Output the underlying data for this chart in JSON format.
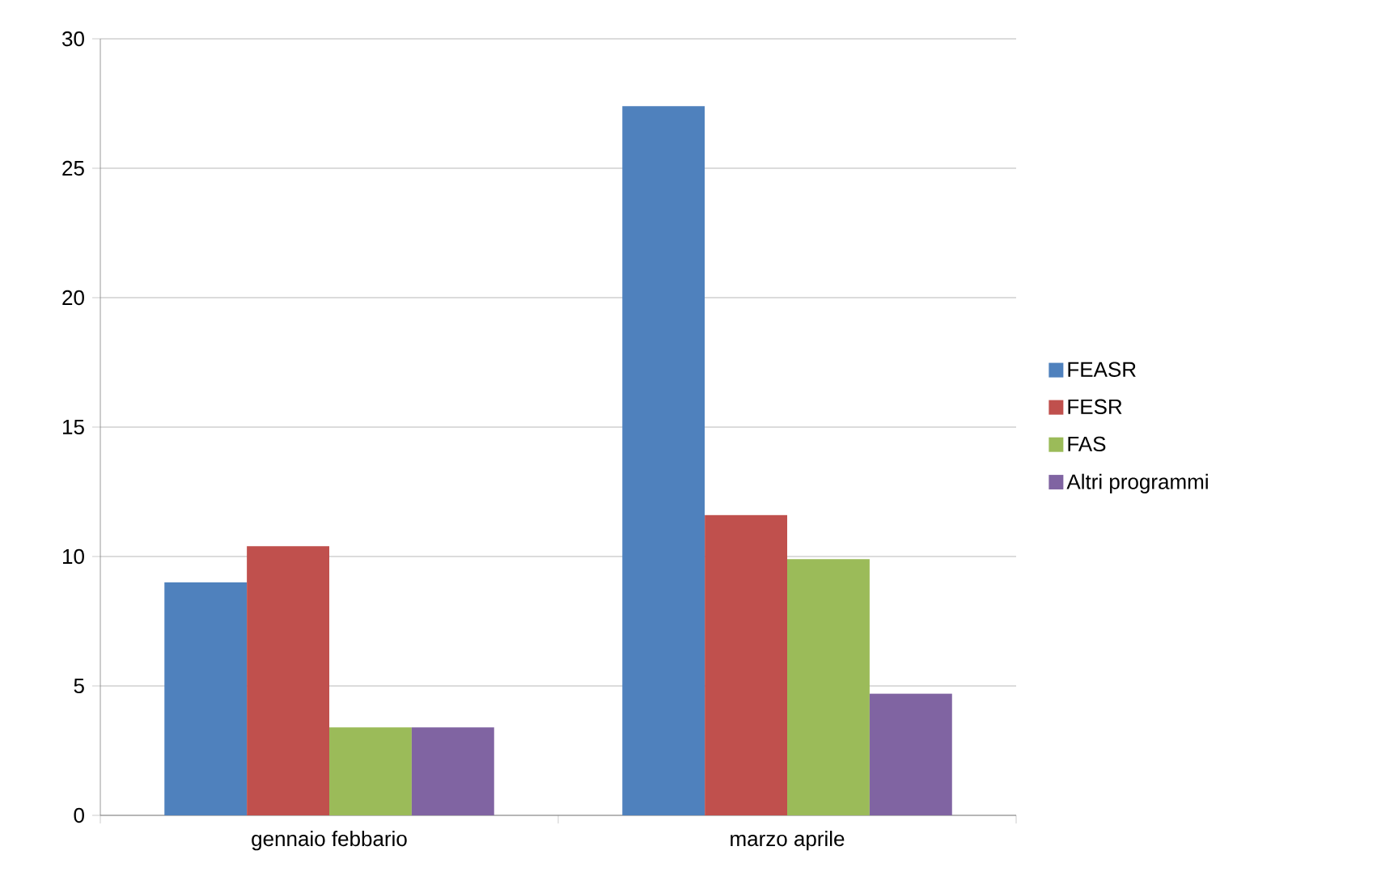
{
  "chart_data": {
    "type": "bar",
    "categories": [
      "gennaio febbario",
      "marzo aprile"
    ],
    "series": [
      {
        "name": "FEASR",
        "color": "#4f81bd",
        "values": [
          9.0,
          27.4
        ]
      },
      {
        "name": "FESR",
        "color": "#c0504d",
        "values": [
          10.4,
          11.6
        ]
      },
      {
        "name": "FAS",
        "color": "#9bbb59",
        "values": [
          3.4,
          9.9
        ]
      },
      {
        "name": "Altri programmi",
        "color": "#8064a2",
        "values": [
          3.4,
          4.7
        ]
      }
    ],
    "ylim": [
      0,
      30
    ],
    "yticks": [
      0,
      5,
      10,
      15,
      20,
      25,
      30
    ],
    "grid": "y",
    "legend": "right"
  }
}
